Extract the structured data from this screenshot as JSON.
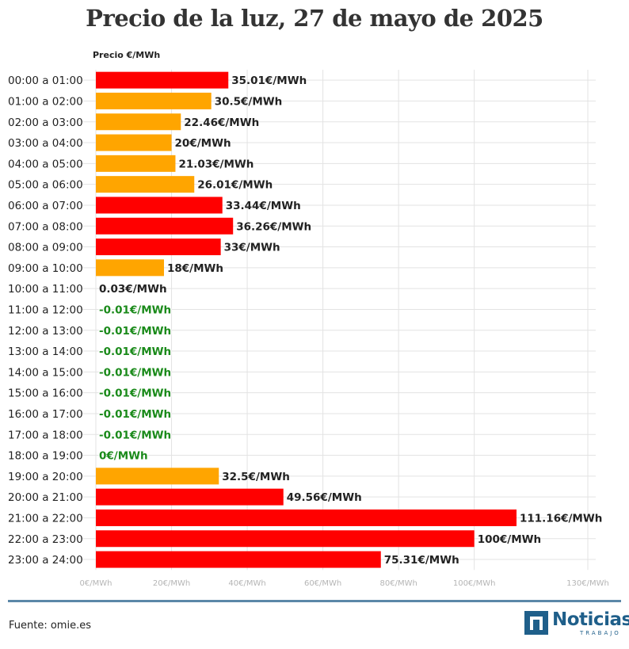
{
  "chart_data": {
    "type": "bar",
    "orientation": "horizontal",
    "title": "Precio de la luz, 27 de mayo de 2025",
    "value_header": "Precio €/MWh",
    "categories": [
      "00:00 a 01:00",
      "01:00 a 02:00",
      "02:00 a 03:00",
      "03:00 a 04:00",
      "04:00 a 05:00",
      "05:00 a 06:00",
      "06:00 a 07:00",
      "07:00 a 08:00",
      "08:00 a 09:00",
      "09:00 a 10:00",
      "10:00 a 11:00",
      "11:00 a 12:00",
      "12:00 a 13:00",
      "13:00 a 14:00",
      "14:00 a 15:00",
      "15:00 a 16:00",
      "16:00 a 17:00",
      "17:00 a 18:00",
      "18:00 a 19:00",
      "19:00 a 20:00",
      "20:00 a 21:00",
      "21:00 a 22:00",
      "22:00 a 23:00",
      "23:00 a 24:00"
    ],
    "values": [
      35.01,
      30.5,
      22.46,
      20,
      21.03,
      26.01,
      33.44,
      36.26,
      33,
      18,
      0.03,
      -0.01,
      -0.01,
      -0.01,
      -0.01,
      -0.01,
      -0.01,
      -0.01,
      0,
      32.5,
      49.56,
      111.16,
      100,
      75.31
    ],
    "value_labels": [
      "35.01€/MWh",
      "30.5€/MWh",
      "22.46€/MWh",
      "20€/MWh",
      "21.03€/MWh",
      "26.01€/MWh",
      "33.44€/MWh",
      "36.26€/MWh",
      "33€/MWh",
      "18€/MWh",
      "0.03€/MWh",
      "-0.01€/MWh",
      "-0.01€/MWh",
      "-0.01€/MWh",
      "-0.01€/MWh",
      "-0.01€/MWh",
      "-0.01€/MWh",
      "-0.01€/MWh",
      "0€/MWh",
      "32.5€/MWh",
      "49.56€/MWh",
      "111.16€/MWh",
      "100€/MWh",
      "75.31€/MWh"
    ],
    "levels": [
      "high",
      "mid",
      "mid",
      "mid",
      "mid",
      "mid",
      "high",
      "high",
      "high",
      "mid",
      "zero",
      "low",
      "low",
      "low",
      "low",
      "low",
      "low",
      "low",
      "low",
      "mid",
      "high",
      "high",
      "high",
      "high"
    ],
    "colors": {
      "high": "#ff0000",
      "mid": "#ffa500",
      "zero": "#222222",
      "low": "#1a8a1a"
    },
    "x_ticks": [
      0,
      20,
      40,
      60,
      80,
      100,
      130
    ],
    "x_tick_labels": [
      "0€/MWh",
      "20€/MWh",
      "40€/MWh",
      "60€/MWh",
      "80€/MWh",
      "100€/MWh",
      "130€/MWh"
    ],
    "xlim": [
      0,
      130
    ],
    "grid": true
  },
  "footer": {
    "source": "Fuente: omie.es",
    "logo_name": "Noticias",
    "logo_sub": "TRABAJO"
  }
}
